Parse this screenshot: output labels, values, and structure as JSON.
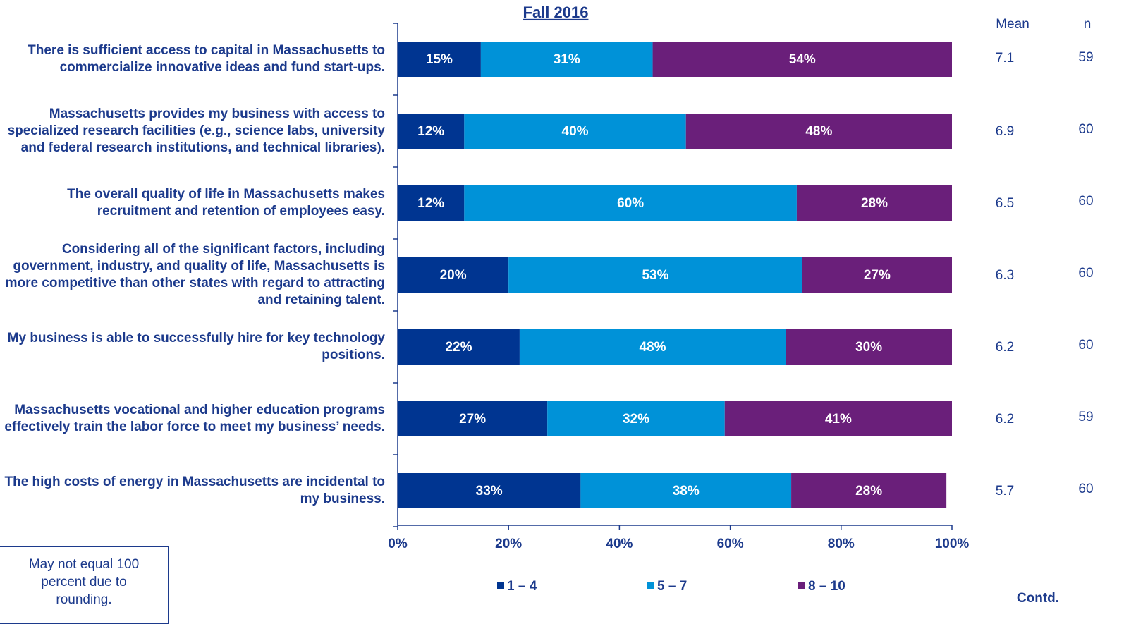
{
  "chart_data": {
    "type": "stacked_bar_horizontal",
    "title": "Fall 2016",
    "categories": [
      "There is sufficient access to capital in Massachusetts to commercialize innovative ideas and fund start-ups.",
      "Massachusetts provides my business with access to specialized research facilities (e.g., science labs, university and federal research institutions, and technical libraries).",
      "The overall quality of life in Massachusetts makes recruitment and retention of employees easy.",
      "Considering all of the significant factors, including government, industry, and quality of life, Massachusetts is more competitive than other states with regard to attracting and retaining talent.",
      "My business is able to successfully hire for key technology positions.",
      "Massachusetts vocational and higher education programs effectively train the labor force to meet my business’ needs.",
      "The high costs of energy in Massachusetts are incidental to my business."
    ],
    "series": [
      {
        "name": "1 – 4",
        "color": "#003591",
        "values": [
          15,
          12,
          12,
          20,
          22,
          27,
          33
        ],
        "value_labels": [
          "15%",
          "12%",
          "12%",
          "20%",
          "22%",
          "27%",
          "33%"
        ]
      },
      {
        "name": "5 – 7",
        "color": "#0092d8",
        "values": [
          31,
          40,
          60,
          53,
          48,
          32,
          38
        ],
        "value_labels": [
          "31%",
          "40%",
          "60%",
          "53%",
          "48%",
          "32%",
          "38%"
        ]
      },
      {
        "name": "8 – 10",
        "color": "#6a1f7a",
        "values": [
          54,
          48,
          28,
          27,
          30,
          41,
          28
        ],
        "value_labels": [
          "54%",
          "48%",
          "28%",
          "27%",
          "30%",
          "41%",
          "28%"
        ]
      }
    ],
    "xlim": [
      0,
      100
    ],
    "xticks": [
      {
        "value": 0,
        "label": "0%"
      },
      {
        "value": 20,
        "label": "20%"
      },
      {
        "value": 40,
        "label": "40%"
      },
      {
        "value": 60,
        "label": "60%"
      },
      {
        "value": 80,
        "label": "80%"
      },
      {
        "value": 100,
        "label": "100%"
      }
    ],
    "mean_header": "Mean",
    "means": [
      7.1,
      6.9,
      6.5,
      6.3,
      6.2,
      6.2,
      5.7
    ],
    "n_header": "n",
    "n": [
      59,
      60,
      60,
      60,
      60,
      59,
      60
    ],
    "note": "May not equal 100 percent due to rounding.",
    "footer": "Contd."
  }
}
